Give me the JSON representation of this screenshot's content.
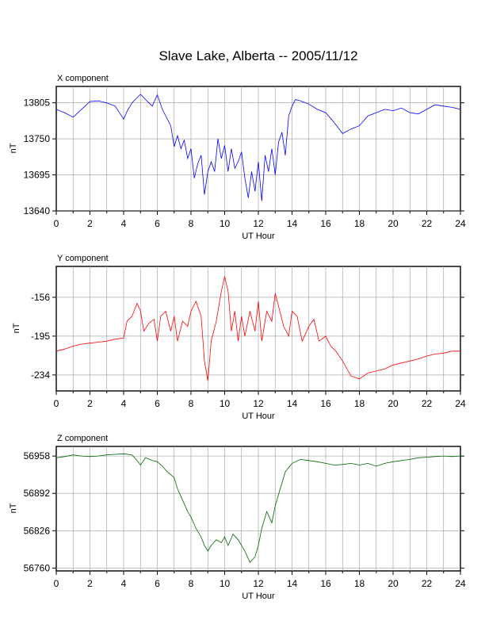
{
  "page_title": "Slave Lake, Alberta -- 2005/11/12",
  "chart_data": [
    {
      "type": "line",
      "title": "X component",
      "xlabel": "UT Hour",
      "ylabel": "nT",
      "xlim": [
        0,
        24
      ],
      "ylim": [
        13640,
        13830
      ],
      "x_ticks": [
        "0",
        "2",
        "4",
        "6",
        "8",
        "10",
        "12",
        "14",
        "16",
        "18",
        "20",
        "22",
        "24"
      ],
      "y_ticks": [
        "13805",
        "13750",
        "13695",
        "13640"
      ],
      "color": "#0000ff",
      "grid": true,
      "x": [
        0,
        0.5,
        1,
        1.5,
        2,
        2.5,
        3,
        3.5,
        4,
        4.2,
        4.5,
        5,
        5.3,
        5.7,
        6,
        6.3,
        6.5,
        6.8,
        7,
        7.2,
        7.4,
        7.6,
        7.8,
        8,
        8.2,
        8.4,
        8.6,
        8.8,
        9,
        9.2,
        9.4,
        9.6,
        9.8,
        10,
        10.2,
        10.4,
        10.6,
        10.8,
        11,
        11.2,
        11.4,
        11.6,
        11.8,
        12,
        12.2,
        12.4,
        12.6,
        12.8,
        13,
        13.2,
        13.4,
        13.6,
        13.8,
        14,
        14.2,
        14.5,
        15,
        15.5,
        16,
        16.5,
        17,
        17.5,
        18,
        18.5,
        19,
        19.5,
        20,
        20.5,
        21,
        21.5,
        22,
        22.5,
        23,
        23.5,
        24
      ],
      "y": [
        13795,
        13790,
        13783,
        13795,
        13807,
        13808,
        13805,
        13800,
        13780,
        13792,
        13805,
        13818,
        13810,
        13800,
        13817,
        13795,
        13785,
        13770,
        13738,
        13755,
        13735,
        13748,
        13720,
        13735,
        13690,
        13712,
        13725,
        13665,
        13700,
        13715,
        13700,
        13750,
        13720,
        13740,
        13700,
        13735,
        13705,
        13715,
        13730,
        13690,
        13660,
        13700,
        13670,
        13715,
        13655,
        13725,
        13700,
        13735,
        13695,
        13745,
        13760,
        13725,
        13785,
        13800,
        13810,
        13808,
        13803,
        13795,
        13790,
        13775,
        13758,
        13765,
        13770,
        13785,
        13790,
        13795,
        13793,
        13797,
        13790,
        13788,
        13795,
        13802,
        13800,
        13798,
        13795
      ]
    },
    {
      "type": "line",
      "title": "Y component",
      "xlabel": "UT Hour",
      "ylabel": "nT",
      "xlim": [
        0,
        24
      ],
      "ylim": [
        -250,
        -125
      ],
      "x_ticks": [
        "0",
        "2",
        "4",
        "6",
        "8",
        "10",
        "12",
        "14",
        "16",
        "18",
        "20",
        "22",
        "24"
      ],
      "y_ticks": [
        "-156",
        "-195",
        "-234"
      ],
      "color": "#ff0000",
      "grid": true,
      "x": [
        0,
        0.5,
        1,
        1.5,
        2,
        2.5,
        3,
        3.5,
        4,
        4.2,
        4.5,
        4.8,
        5,
        5.2,
        5.5,
        5.8,
        6,
        6.2,
        6.5,
        6.8,
        7,
        7.2,
        7.5,
        7.8,
        8,
        8.3,
        8.6,
        8.8,
        9,
        9.2,
        9.5,
        9.8,
        10,
        10.2,
        10.4,
        10.6,
        10.8,
        11,
        11.2,
        11.5,
        11.8,
        12,
        12.2,
        12.5,
        12.8,
        13,
        13.2,
        13.5,
        13.8,
        14,
        14.3,
        14.6,
        15,
        15.3,
        15.6,
        16,
        16.3,
        16.6,
        17,
        17.5,
        18,
        18.5,
        19,
        19.5,
        20,
        20.5,
        21,
        21.5,
        22,
        22.5,
        23,
        23.5,
        24
      ],
      "y": [
        -210,
        -208,
        -205,
        -203,
        -202,
        -201,
        -200,
        -198,
        -197,
        -180,
        -175,
        -162,
        -170,
        -190,
        -182,
        -178,
        -200,
        -175,
        -170,
        -190,
        -175,
        -200,
        -180,
        -185,
        -170,
        -160,
        -175,
        -220,
        -240,
        -200,
        -180,
        -150,
        -135,
        -150,
        -190,
        -170,
        -200,
        -175,
        -195,
        -170,
        -190,
        -160,
        -200,
        -170,
        -180,
        -152,
        -165,
        -185,
        -195,
        -170,
        -175,
        -200,
        -185,
        -178,
        -200,
        -195,
        -205,
        -210,
        -220,
        -235,
        -238,
        -232,
        -230,
        -228,
        -224,
        -222,
        -220,
        -218,
        -215,
        -213,
        -212,
        -210,
        -210
      ]
    },
    {
      "type": "line",
      "title": "Z component",
      "xlabel": "UT Hour",
      "ylabel": "nT",
      "xlim": [
        0,
        24
      ],
      "ylim": [
        56755,
        56975
      ],
      "x_ticks": [
        "0",
        "2",
        "4",
        "6",
        "8",
        "10",
        "12",
        "14",
        "16",
        "18",
        "20",
        "22",
        "24"
      ],
      "y_ticks": [
        "56958",
        "56892",
        "56826",
        "56760"
      ],
      "color": "#006400",
      "grid": true,
      "x": [
        0,
        0.5,
        1,
        1.5,
        2,
        2.5,
        3,
        3.5,
        4,
        4.5,
        4.8,
        5,
        5.3,
        5.7,
        6,
        6.3,
        6.6,
        7,
        7.2,
        7.5,
        7.8,
        8,
        8.3,
        8.6,
        8.8,
        9,
        9.2,
        9.5,
        9.8,
        10,
        10.2,
        10.5,
        10.8,
        11,
        11.2,
        11.5,
        11.8,
        12,
        12.2,
        12.5,
        12.8,
        13,
        13.3,
        13.6,
        14,
        14.5,
        15,
        15.5,
        16,
        16.5,
        17,
        17.5,
        18,
        18.5,
        19,
        19.5,
        20,
        20.5,
        21,
        21.5,
        22,
        22.5,
        23,
        23.5,
        24
      ],
      "y": [
        56955,
        56957,
        56960,
        56958,
        56957,
        56958,
        56960,
        56961,
        56962,
        56960,
        56950,
        56942,
        56955,
        56950,
        56948,
        56940,
        56930,
        56920,
        56900,
        56880,
        56860,
        56850,
        56830,
        56815,
        56800,
        56790,
        56800,
        56810,
        56805,
        56815,
        56800,
        56820,
        56810,
        56800,
        56790,
        56770,
        56780,
        56800,
        56830,
        56860,
        56840,
        56870,
        56900,
        56930,
        56945,
        56952,
        56950,
        56948,
        56945,
        56942,
        56943,
        56945,
        56942,
        56945,
        56940,
        56945,
        56948,
        56950,
        56952,
        56955,
        56956,
        56957,
        56958,
        56957,
        56958
      ]
    }
  ]
}
